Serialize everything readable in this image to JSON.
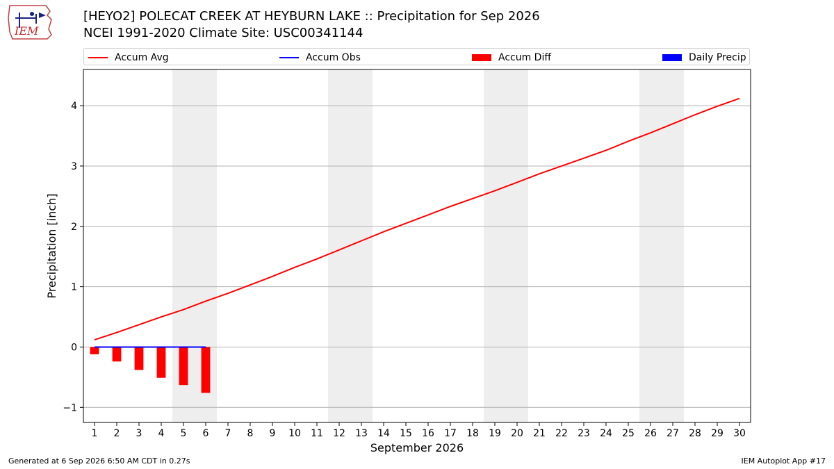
{
  "logo": {
    "text": "IEM"
  },
  "header": {
    "title_line1": "[HEYO2] POLECAT CREEK  AT HEYBURN LAKE :: Precipitation for Sep 2026",
    "title_line2": "NCEI 1991-2020 Climate Site: USC00341144"
  },
  "legend": [
    {
      "label": "Accum Avg",
      "color": "#ff0000",
      "kind": "line"
    },
    {
      "label": "Accum Obs",
      "color": "#0000ff",
      "kind": "line"
    },
    {
      "label": "Accum Diff",
      "color": "#ff0000",
      "kind": "bar"
    },
    {
      "label": "Daily Precip",
      "color": "#0000ff",
      "kind": "bar"
    }
  ],
  "footer": {
    "generated": "Generated at 6 Sep 2026 6:50 AM CDT in 0.27s",
    "app": "IEM Autoplot App #17"
  },
  "chart_data": {
    "type": "line",
    "title": "[HEYO2] POLECAT CREEK  AT HEYBURN LAKE :: Precipitation for Sep 2026",
    "xlabel": "September 2026",
    "ylabel": "Precipitation [inch]",
    "xlim": [
      0.5,
      30.5
    ],
    "ylim": [
      -1.25,
      4.6
    ],
    "grid": "horizontal",
    "legend_position": "top",
    "x_ticks": [
      1,
      2,
      3,
      4,
      5,
      6,
      7,
      8,
      9,
      10,
      11,
      12,
      13,
      14,
      15,
      16,
      17,
      18,
      19,
      20,
      21,
      22,
      23,
      24,
      25,
      26,
      27,
      28,
      29,
      30
    ],
    "y_ticks": [
      {
        "value": -1,
        "label": "−1"
      },
      {
        "value": 0,
        "label": "0"
      },
      {
        "value": 1,
        "label": "1"
      },
      {
        "value": 2,
        "label": "2"
      },
      {
        "value": 3,
        "label": "3"
      },
      {
        "value": 4,
        "label": "4"
      }
    ],
    "weekend_shading": [
      [
        4.5,
        6.5
      ],
      [
        11.5,
        13.5
      ],
      [
        18.5,
        20.5
      ],
      [
        25.5,
        27.5
      ]
    ],
    "series": [
      {
        "name": "Accum Avg",
        "kind": "line",
        "color": "#ff0000",
        "x": [
          1,
          2,
          3,
          4,
          5,
          6,
          7,
          8,
          9,
          10,
          11,
          12,
          13,
          14,
          15,
          16,
          17,
          18,
          19,
          20,
          21,
          22,
          23,
          24,
          25,
          26,
          27,
          28,
          29,
          30
        ],
        "values": [
          0.12,
          0.24,
          0.37,
          0.5,
          0.62,
          0.76,
          0.89,
          1.03,
          1.17,
          1.32,
          1.46,
          1.61,
          1.76,
          1.91,
          2.05,
          2.19,
          2.33,
          2.46,
          2.59,
          2.73,
          2.87,
          3.0,
          3.13,
          3.26,
          3.41,
          3.55,
          3.7,
          3.85,
          3.99,
          4.12
        ]
      },
      {
        "name": "Accum Obs",
        "kind": "line",
        "color": "#0000ff",
        "x": [
          1,
          2,
          3,
          4,
          5,
          6
        ],
        "values": [
          0,
          0,
          0,
          0,
          0,
          0
        ]
      },
      {
        "name": "Accum Diff",
        "kind": "bar",
        "color": "#ff0000",
        "x": [
          1,
          2,
          3,
          4,
          5,
          6
        ],
        "values": [
          -0.12,
          -0.24,
          -0.38,
          -0.51,
          -0.63,
          -0.76
        ]
      },
      {
        "name": "Daily Precip",
        "kind": "bar",
        "color": "#0000ff",
        "x": [
          1,
          2,
          3,
          4,
          5,
          6
        ],
        "values": [
          0,
          0,
          0,
          0,
          0,
          0
        ]
      }
    ]
  }
}
